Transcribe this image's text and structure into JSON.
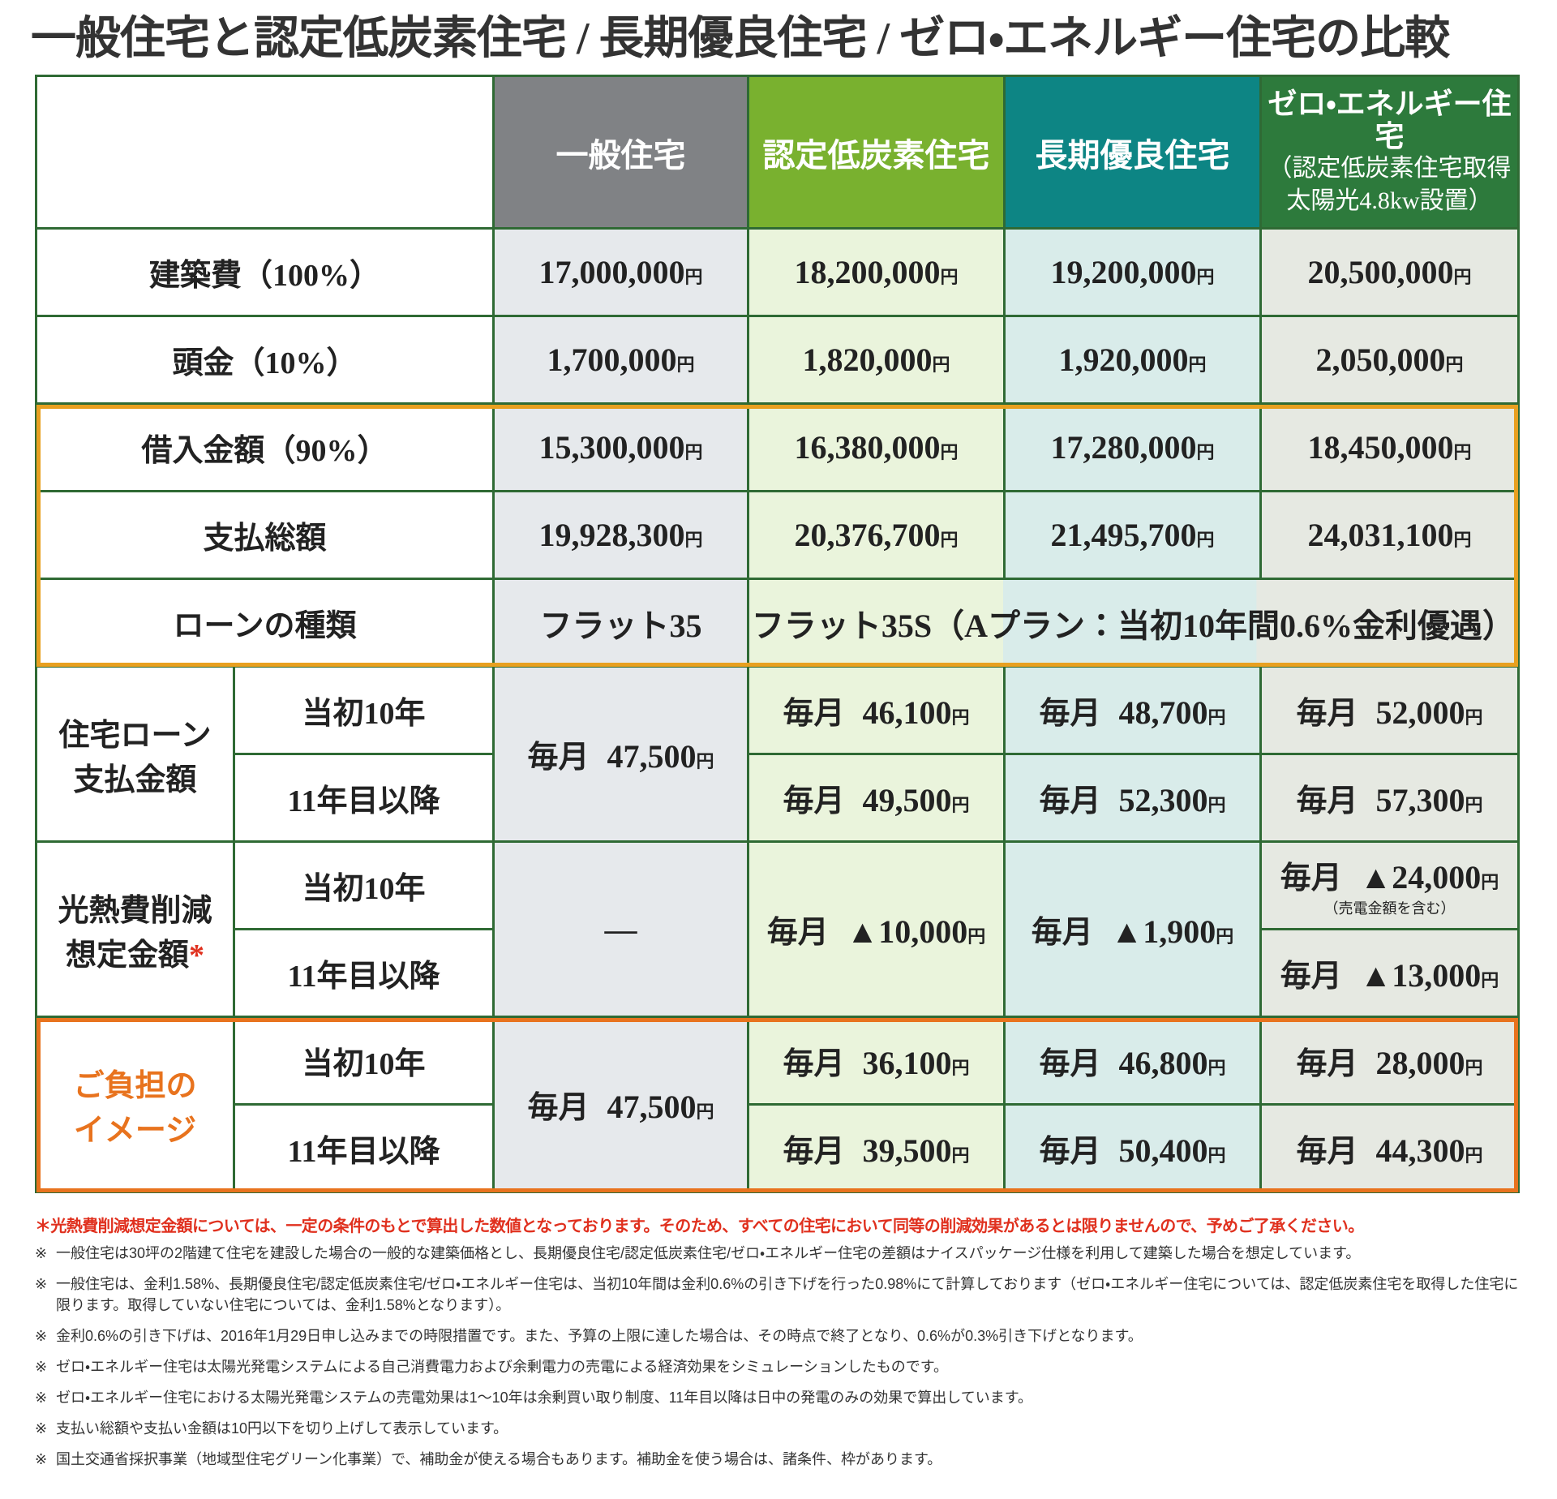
{
  "title": "一般住宅と認定低炭素住宅 / 長期優良住宅 / ゼロ・エネルギー住宅の比較",
  "table": {
    "unit": "円",
    "monthly": "毎月",
    "columns": [
      {
        "title": "一般住宅"
      },
      {
        "title": "認定低炭素住宅"
      },
      {
        "title": "長期優良住宅"
      },
      {
        "title": "ゼロ・エネルギー住宅",
        "details": [
          "（認定低炭素住宅取得",
          "太陽光4.8kw設置）"
        ]
      }
    ],
    "rows": [
      {
        "label": "建築費（100%）",
        "values": [
          "17,000,000",
          "18,200,000",
          "19,200,000",
          "20,500,000"
        ]
      },
      {
        "label": "頭金（10%）",
        "values": [
          "1,700,000",
          "1,820,000",
          "1,920,000",
          "2,050,000"
        ]
      },
      {
        "label": "借入金額（90%）",
        "values": [
          "15,300,000",
          "16,380,000",
          "17,280,000",
          "18,450,000"
        ]
      },
      {
        "label": "支払総額",
        "values": [
          "19,928,300",
          "20,376,700",
          "21,495,700",
          "24,031,100"
        ]
      },
      {
        "label": "ローンの種類",
        "values": [
          "フラット35",
          "フラット35S（Aプラン：当初10年間0.6%金利優遇）"
        ]
      }
    ],
    "groups": [
      {
        "label": [
          "住宅ローン",
          "支払金額"
        ],
        "periods": [
          "当初10年",
          "11年目以降"
        ],
        "general": "47,500",
        "initial": [
          "46,100",
          "48,700",
          "52,000"
        ],
        "later": [
          "49,500",
          "52,300",
          "57,300"
        ]
      },
      {
        "label": [
          "光熱費削減",
          "想定金額"
        ],
        "mark": "*",
        "periods": [
          "当初10年",
          "11年目以降"
        ],
        "general": "—",
        "combined": [
          "▲10,000",
          "▲1,900"
        ],
        "initial": "▲24,000",
        "initial_note": "（売電金額を含む）",
        "later": "▲13,000"
      },
      {
        "label": [
          "ご負担の",
          "イメージ"
        ],
        "periods": [
          "当初10年",
          "11年目以降"
        ],
        "general": "47,500",
        "initial": [
          "36,100",
          "46,800",
          "28,000"
        ],
        "later": [
          "39,500",
          "50,400",
          "44,300"
        ]
      }
    ]
  },
  "notes": {
    "caution": "＊光熱費削減想定金額については、一定の条件のもとで算出した数値となっております。そのため、すべての住宅において同等の削減効果があるとは限りませんので、予めご了承ください。",
    "mark": "※",
    "items": [
      "一般住宅は30坪の2階建て住宅を建設した場合の一般的な建築価格とし、長期優良住宅/認定低炭素住宅/ゼロ・エネルギー住宅の差額はナイスパッケージ仕様を利用して建築した場合を想定しています。",
      "一般住宅は、金利1.58%、長期優良住宅/認定低炭素住宅/ゼロ・エネルギー住宅は、当初10年間は金利0.6%の引き下げを行った0.98%にて計算しております（ゼロ・エネルギー住宅については、認定低炭素住宅を取得した住宅に限ります。取得していない住宅については、金利1.58%となります）。",
      "金利0.6%の引き下げは、2016年1月29日申し込みまでの時限措置です。また、予算の上限に達した場合は、その時点で終了となり、0.6%が0.3%引き下げとなります。",
      "ゼロ・エネルギー住宅は太陽光発電システムによる自己消費電力および余剰電力の売電による経済効果をシミュレーションしたものです。",
      "ゼロ・エネルギー住宅における太陽光発電システムの売電効果は1～10年は余剰買い取り制度、11年目以降は日中の発電のみの効果で算出しています。",
      "支払い総額や支払い金額は10円以下を切り上げして表示しています。",
      "国土交通省採択事業（地域型住宅グリーン化事業）で、補助金が使える場合もあります。補助金を使う場合は、諸条件、枠があります。"
    ]
  }
}
